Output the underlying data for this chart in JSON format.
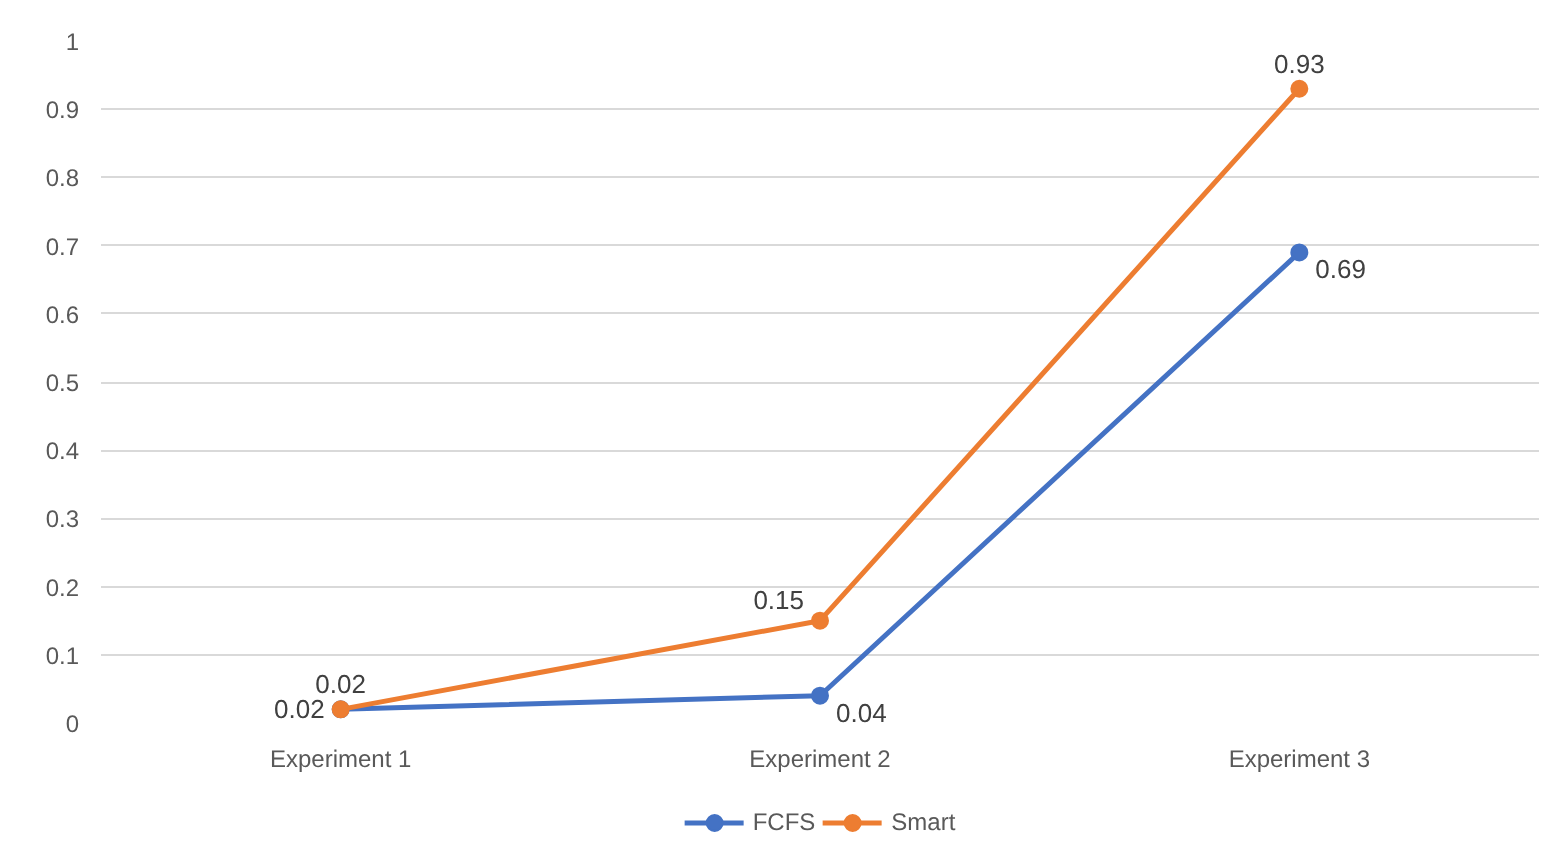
{
  "chart_data": {
    "type": "line",
    "categories": [
      "Experiment 1",
      "Experiment 2",
      "Experiment 3"
    ],
    "series": [
      {
        "name": "FCFS",
        "color": "#4472c4",
        "values": [
          0.02,
          0.04,
          0.69
        ]
      },
      {
        "name": "Smart",
        "color": "#ed7d31",
        "values": [
          0.02,
          0.15,
          0.93
        ]
      }
    ],
    "ylim": [
      0,
      1
    ],
    "yticks": [
      0,
      0.1,
      0.2,
      0.3,
      0.4,
      0.5,
      0.6,
      0.7,
      0.8,
      0.9,
      1
    ],
    "grid": "y",
    "legend": "bottom",
    "marker": "circle",
    "line_style": "solid",
    "data_labels": true
  }
}
